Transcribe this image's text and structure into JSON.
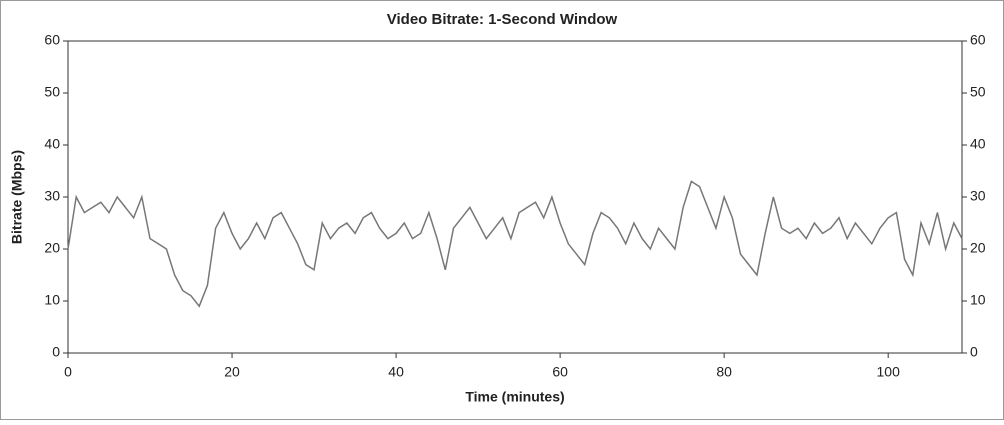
{
  "chart_data": {
    "type": "line",
    "title": "Video Bitrate: 1-Second Window",
    "xlabel": "Time (minutes)",
    "ylabel": "Bitrate (Mbps)",
    "x": [
      0,
      1,
      2,
      3,
      4,
      5,
      6,
      7,
      8,
      9,
      10,
      11,
      12,
      13,
      14,
      15,
      16,
      17,
      18,
      19,
      20,
      21,
      22,
      23,
      24,
      25,
      26,
      27,
      28,
      29,
      30,
      31,
      32,
      33,
      34,
      35,
      36,
      37,
      38,
      39,
      40,
      41,
      42,
      43,
      44,
      45,
      46,
      47,
      48,
      49,
      50,
      51,
      52,
      53,
      54,
      55,
      56,
      57,
      58,
      59,
      60,
      61,
      62,
      63,
      64,
      65,
      66,
      67,
      68,
      69,
      70,
      71,
      72,
      73,
      74,
      75,
      76,
      77,
      78,
      79,
      80,
      81,
      82,
      83,
      84,
      85,
      86,
      87,
      88,
      89,
      90,
      91,
      92,
      93,
      94,
      95,
      96,
      97,
      98,
      99,
      100,
      101,
      102,
      103,
      104,
      105,
      106,
      107,
      108,
      109
    ],
    "series": [
      {
        "name": "Bitrate",
        "color": "#777777",
        "values": [
          20,
          30,
          27,
          28,
          29,
          27,
          30,
          28,
          26,
          30,
          22,
          21,
          20,
          15,
          12,
          11,
          9,
          13,
          24,
          27,
          23,
          20,
          22,
          25,
          22,
          26,
          27,
          24,
          21,
          17,
          16,
          25,
          22,
          24,
          25,
          23,
          26,
          27,
          24,
          22,
          23,
          25,
          22,
          23,
          27,
          22,
          16,
          24,
          26,
          28,
          25,
          22,
          24,
          26,
          22,
          27,
          28,
          29,
          26,
          30,
          25,
          21,
          19,
          17,
          23,
          27,
          26,
          24,
          21,
          25,
          22,
          20,
          24,
          22,
          20,
          28,
          33,
          32,
          28,
          24,
          30,
          26,
          19,
          17,
          15,
          23,
          30,
          24,
          23,
          24,
          22,
          25,
          23,
          24,
          26,
          22,
          25,
          23,
          21,
          24,
          26,
          27,
          18,
          15,
          25,
          21,
          27,
          20,
          25,
          22
        ]
      }
    ],
    "xlim": [
      0,
      109
    ],
    "xticks": [
      0,
      20,
      40,
      60,
      80,
      100
    ],
    "ylim": [
      0,
      60
    ],
    "yticks": [
      0,
      10,
      20,
      30,
      40,
      50,
      60
    ],
    "y2lim": [
      0,
      60
    ],
    "y2ticks": [
      0,
      10,
      20,
      30,
      40,
      50,
      60
    ]
  }
}
